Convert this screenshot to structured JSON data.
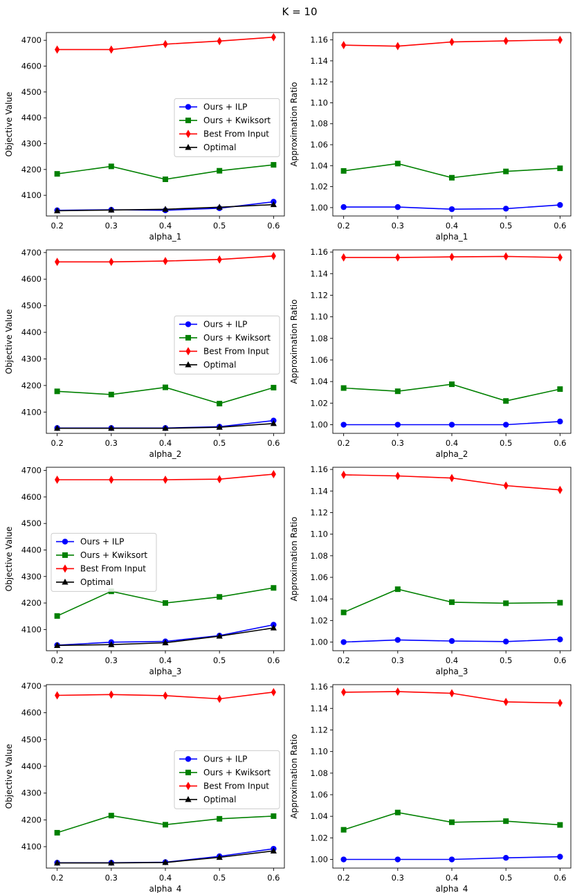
{
  "figure": {
    "title": "K = 10"
  },
  "colors": {
    "ilp": "#0000ff",
    "kwik": "#008000",
    "best": "#ff0000",
    "opt": "#000000"
  },
  "legend_labels": [
    "Ours + ILP",
    "Ours + Kwiksort",
    "Best From Input",
    "Optimal"
  ],
  "chart_data": [
    {
      "type": "line",
      "row": 0,
      "col": 0,
      "xlabel": "alpha_1",
      "ylabel": "Objective Value",
      "x": [
        0.2,
        0.3,
        0.4,
        0.5,
        0.6
      ],
      "xticks": [
        "0.2",
        "0.3",
        "0.4",
        "0.5",
        "0.6"
      ],
      "ylim": [
        4020,
        4730
      ],
      "yticks": [
        4100,
        4200,
        4300,
        4400,
        4500,
        4600,
        4700
      ],
      "yticklabels": [
        "4100",
        "4200",
        "4300",
        "4400",
        "4500",
        "4600",
        "4700"
      ],
      "legend": "center-right",
      "series": [
        {
          "name": "Ours + ILP",
          "key": "ilp",
          "marker": "circle",
          "values": [
            4042,
            4044,
            4042,
            4050,
            4075
          ]
        },
        {
          "name": "Ours + Kwiksort",
          "key": "kwik",
          "marker": "square",
          "values": [
            4183,
            4212,
            4162,
            4195,
            4218
          ]
        },
        {
          "name": "Best From Input",
          "key": "best",
          "marker": "diamond",
          "values": [
            4664,
            4664,
            4685,
            4697,
            4712
          ]
        },
        {
          "name": "Optimal",
          "key": "opt",
          "marker": "triangle",
          "values": [
            4040,
            4043,
            4046,
            4054,
            4064
          ]
        }
      ]
    },
    {
      "type": "line",
      "row": 0,
      "col": 1,
      "xlabel": "alpha_1",
      "ylabel": "Approximation Ratio",
      "x": [
        0.2,
        0.3,
        0.4,
        0.5,
        0.6
      ],
      "xticks": [
        "0.2",
        "0.3",
        "0.4",
        "0.5",
        "0.6"
      ],
      "ylim": [
        0.992,
        1.167
      ],
      "yticks": [
        1.0,
        1.02,
        1.04,
        1.06,
        1.08,
        1.1,
        1.12,
        1.14,
        1.16
      ],
      "yticklabels": [
        "1.00",
        "1.02",
        "1.04",
        "1.06",
        "1.08",
        "1.10",
        "1.12",
        "1.14",
        "1.16"
      ],
      "legend": "none",
      "series": [
        {
          "name": "Ours + ILP",
          "key": "ilp",
          "marker": "circle",
          "values": [
            1.0005,
            1.0005,
            0.9985,
            0.999,
            1.0025
          ]
        },
        {
          "name": "Ours + Kwiksort",
          "key": "kwik",
          "marker": "square",
          "values": [
            1.035,
            1.042,
            1.0285,
            1.0345,
            1.0375
          ]
        },
        {
          "name": "Best From Input",
          "key": "best",
          "marker": "diamond",
          "values": [
            1.155,
            1.154,
            1.158,
            1.159,
            1.16
          ]
        }
      ]
    },
    {
      "type": "line",
      "row": 1,
      "col": 0,
      "xlabel": "alpha_2",
      "ylabel": "Objective Value",
      "x": [
        0.2,
        0.3,
        0.4,
        0.5,
        0.6
      ],
      "xticks": [
        "0.2",
        "0.3",
        "0.4",
        "0.5",
        "0.6"
      ],
      "ylim": [
        4020,
        4710
      ],
      "yticks": [
        4100,
        4200,
        4300,
        4400,
        4500,
        4600,
        4700
      ],
      "yticklabels": [
        "4100",
        "4200",
        "4300",
        "4400",
        "4500",
        "4600",
        "4700"
      ],
      "legend": "center-right",
      "series": [
        {
          "name": "Ours + ILP",
          "key": "ilp",
          "marker": "circle",
          "values": [
            4040,
            4040,
            4040,
            4045,
            4068
          ]
        },
        {
          "name": "Ours + Kwiksort",
          "key": "kwik",
          "marker": "square",
          "values": [
            4178,
            4166,
            4193,
            4132,
            4192
          ]
        },
        {
          "name": "Best From Input",
          "key": "best",
          "marker": "diamond",
          "values": [
            4665,
            4665,
            4668,
            4674,
            4687
          ]
        },
        {
          "name": "Optimal",
          "key": "opt",
          "marker": "triangle",
          "values": [
            4039,
            4039,
            4039,
            4043,
            4057
          ]
        }
      ]
    },
    {
      "type": "line",
      "row": 1,
      "col": 1,
      "xlabel": "alpha_2",
      "ylabel": "Approximation Ratio",
      "x": [
        0.2,
        0.3,
        0.4,
        0.5,
        0.6
      ],
      "xticks": [
        "0.2",
        "0.3",
        "0.4",
        "0.5",
        "0.6"
      ],
      "ylim": [
        0.992,
        1.162
      ],
      "yticks": [
        1.0,
        1.02,
        1.04,
        1.06,
        1.08,
        1.1,
        1.12,
        1.14,
        1.16
      ],
      "yticklabels": [
        "1.00",
        "1.02",
        "1.04",
        "1.06",
        "1.08",
        "1.10",
        "1.12",
        "1.14",
        "1.16"
      ],
      "legend": "none",
      "series": [
        {
          "name": "Ours + ILP",
          "key": "ilp",
          "marker": "circle",
          "values": [
            1.0,
            1.0,
            1.0,
            1.0,
            1.003
          ]
        },
        {
          "name": "Ours + Kwiksort",
          "key": "kwik",
          "marker": "square",
          "values": [
            1.034,
            1.031,
            1.0375,
            1.022,
            1.033
          ]
        },
        {
          "name": "Best From Input",
          "key": "best",
          "marker": "diamond",
          "values": [
            1.155,
            1.155,
            1.1555,
            1.156,
            1.155
          ]
        }
      ]
    },
    {
      "type": "line",
      "row": 2,
      "col": 0,
      "xlabel": "alpha_3",
      "ylabel": "Objective Value",
      "x": [
        0.2,
        0.3,
        0.4,
        0.5,
        0.6
      ],
      "xticks": [
        "0.2",
        "0.3",
        "0.4",
        "0.5",
        "0.6"
      ],
      "ylim": [
        4020,
        4712
      ],
      "yticks": [
        4100,
        4200,
        4300,
        4400,
        4500,
        4600,
        4700
      ],
      "yticklabels": [
        "4100",
        "4200",
        "4300",
        "4400",
        "4500",
        "4600",
        "4700"
      ],
      "legend": "center-left",
      "series": [
        {
          "name": "Ours + ILP",
          "key": "ilp",
          "marker": "circle",
          "values": [
            4041,
            4052,
            4055,
            4077,
            4118
          ]
        },
        {
          "name": "Ours + Kwiksort",
          "key": "kwik",
          "marker": "square",
          "values": [
            4151,
            4244,
            4200,
            4223,
            4257
          ]
        },
        {
          "name": "Best From Input",
          "key": "best",
          "marker": "diamond",
          "values": [
            4665,
            4665,
            4665,
            4667,
            4686
          ]
        },
        {
          "name": "Optimal",
          "key": "opt",
          "marker": "triangle",
          "values": [
            4040,
            4043,
            4050,
            4075,
            4106
          ]
        }
      ]
    },
    {
      "type": "line",
      "row": 2,
      "col": 1,
      "xlabel": "alpha_3",
      "ylabel": "Approximation Ratio",
      "x": [
        0.2,
        0.3,
        0.4,
        0.5,
        0.6
      ],
      "xticks": [
        "0.2",
        "0.3",
        "0.4",
        "0.5",
        "0.6"
      ],
      "ylim": [
        0.992,
        1.162
      ],
      "yticks": [
        1.0,
        1.02,
        1.04,
        1.06,
        1.08,
        1.1,
        1.12,
        1.14,
        1.16
      ],
      "yticklabels": [
        "1.00",
        "1.02",
        "1.04",
        "1.06",
        "1.08",
        "1.10",
        "1.12",
        "1.14",
        "1.16"
      ],
      "legend": "none",
      "series": [
        {
          "name": "Ours + ILP",
          "key": "ilp",
          "marker": "circle",
          "values": [
            1.0,
            1.002,
            1.001,
            1.0005,
            1.0025
          ]
        },
        {
          "name": "Ours + Kwiksort",
          "key": "kwik",
          "marker": "square",
          "values": [
            1.0275,
            1.049,
            1.037,
            1.036,
            1.0365
          ]
        },
        {
          "name": "Best From Input",
          "key": "best",
          "marker": "diamond",
          "values": [
            1.155,
            1.154,
            1.152,
            1.145,
            1.141
          ]
        }
      ]
    },
    {
      "type": "line",
      "row": 3,
      "col": 0,
      "xlabel": "alpha_4",
      "ylabel": "Objective Value",
      "x": [
        0.2,
        0.3,
        0.4,
        0.5,
        0.6
      ],
      "xticks": [
        "0.2",
        "0.3",
        "0.4",
        "0.5",
        "0.6"
      ],
      "ylim": [
        4020,
        4705
      ],
      "yticks": [
        4100,
        4200,
        4300,
        4400,
        4500,
        4600,
        4700
      ],
      "yticklabels": [
        "4100",
        "4200",
        "4300",
        "4400",
        "4500",
        "4600",
        "4700"
      ],
      "legend": "center-right",
      "series": [
        {
          "name": "Ours + ILP",
          "key": "ilp",
          "marker": "circle",
          "values": [
            4040,
            4040,
            4042,
            4064,
            4092
          ]
        },
        {
          "name": "Ours + Kwiksort",
          "key": "kwik",
          "marker": "square",
          "values": [
            4152,
            4216,
            4182,
            4204,
            4214
          ]
        },
        {
          "name": "Best From Input",
          "key": "best",
          "marker": "diamond",
          "values": [
            4665,
            4668,
            4664,
            4652,
            4677
          ]
        },
        {
          "name": "Optimal",
          "key": "opt",
          "marker": "triangle",
          "values": [
            4039,
            4039,
            4041,
            4060,
            4084
          ]
        }
      ]
    },
    {
      "type": "line",
      "row": 3,
      "col": 1,
      "xlabel": "alpha_4",
      "ylabel": "Approximation Ratio",
      "x": [
        0.2,
        0.3,
        0.4,
        0.5,
        0.6
      ],
      "xticks": [
        "0.2",
        "0.3",
        "0.4",
        "0.5",
        "0.6"
      ],
      "ylim": [
        0.992,
        1.162
      ],
      "yticks": [
        1.0,
        1.02,
        1.04,
        1.06,
        1.08,
        1.1,
        1.12,
        1.14,
        1.16
      ],
      "yticklabels": [
        "1.00",
        "1.02",
        "1.04",
        "1.06",
        "1.08",
        "1.10",
        "1.12",
        "1.14",
        "1.16"
      ],
      "legend": "none",
      "series": [
        {
          "name": "Ours + ILP",
          "key": "ilp",
          "marker": "circle",
          "values": [
            1.0,
            1.0,
            1.0,
            1.0015,
            1.0025
          ]
        },
        {
          "name": "Ours + Kwiksort",
          "key": "kwik",
          "marker": "square",
          "values": [
            1.0275,
            1.0435,
            1.0345,
            1.0355,
            1.032
          ]
        },
        {
          "name": "Best From Input",
          "key": "best",
          "marker": "diamond",
          "values": [
            1.155,
            1.1555,
            1.154,
            1.146,
            1.145
          ]
        }
      ]
    }
  ]
}
